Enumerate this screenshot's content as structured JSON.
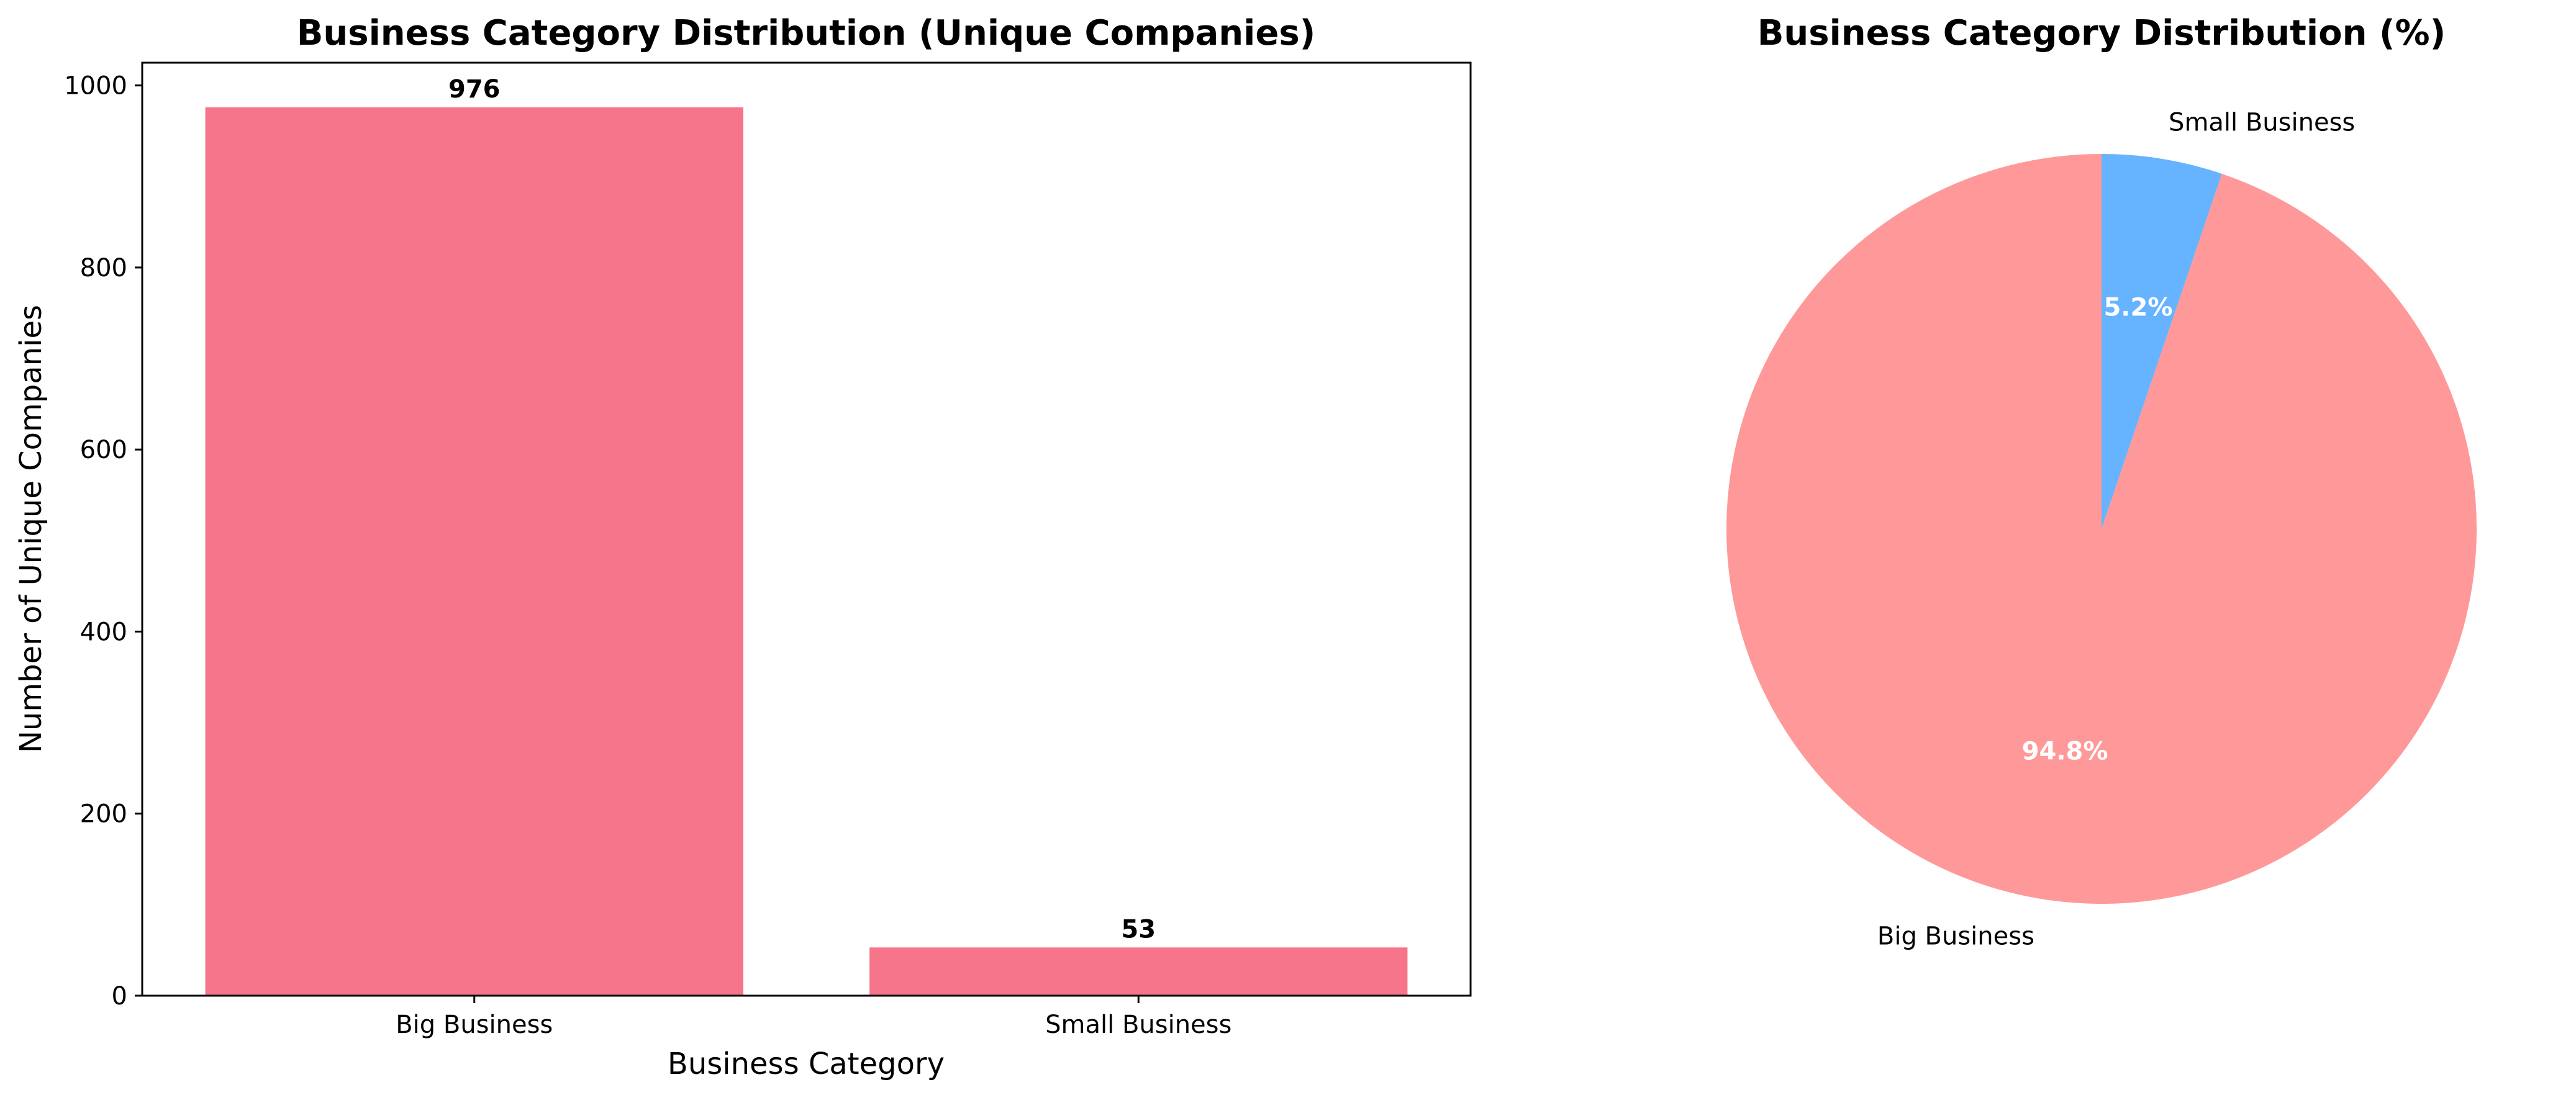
{
  "chart_data": [
    {
      "type": "bar",
      "title": "Business Category Distribution (Unique Companies)",
      "xlabel": "Business Category",
      "ylabel": "Number of Unique Companies",
      "categories": [
        "Big Business",
        "Small Business"
      ],
      "values": [
        976,
        53
      ],
      "value_labels": [
        "976",
        "53"
      ],
      "ylim": [
        0,
        1025
      ],
      "yticks": [
        0,
        200,
        400,
        600,
        800,
        1000
      ],
      "ytick_labels": [
        "0",
        "200",
        "400",
        "600",
        "800",
        "1000"
      ],
      "bar_color": "#f7758a",
      "grid": false
    },
    {
      "type": "pie",
      "title": "Business Category Distribution (%)",
      "labels": [
        "Small Business",
        "Big Business"
      ],
      "values": [
        5.2,
        94.8
      ],
      "pct_labels": [
        "5.2%",
        "94.8%"
      ],
      "colors": [
        "#66b3ff",
        "#ff9999"
      ],
      "start": "top, clockwise"
    }
  ]
}
